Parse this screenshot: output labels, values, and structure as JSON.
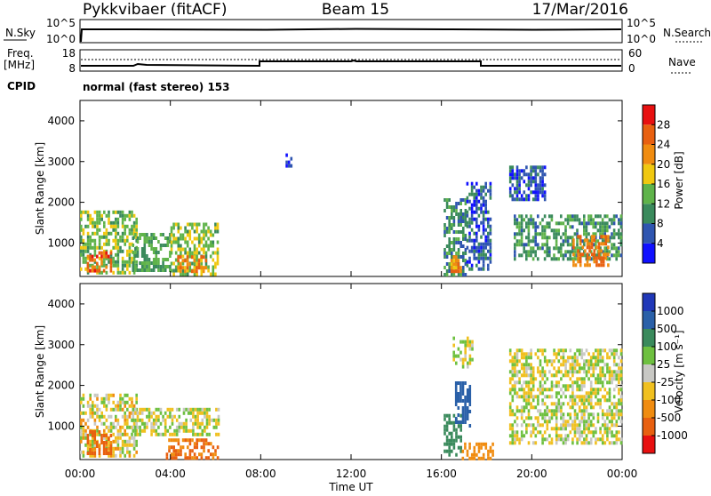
{
  "header": {
    "radar": "Pykkvibaer (fitACF)",
    "beam": "Beam 15",
    "date": "17/Mar/2016"
  },
  "sky_panel": {
    "left_label": "N.Sky",
    "right_label": "N.Search",
    "left_ticks": [
      "10^5",
      "10^0"
    ],
    "right_ticks": [
      "10^5",
      "10^0"
    ]
  },
  "freq_panel": {
    "left_label_1": "Freq.",
    "left_label_2": "[MHz]",
    "right_label": "Nave",
    "left_ticks": [
      "18",
      "8"
    ],
    "right_ticks": [
      "60",
      "0"
    ]
  },
  "cpid": {
    "label": "CPID",
    "text": "normal (fast stereo) 153"
  },
  "x_axis": {
    "tick_labels": [
      "00:00",
      "04:00",
      "08:00",
      "12:00",
      "16:00",
      "20:00",
      "00:00"
    ],
    "label": "Time UT"
  },
  "y_axis": {
    "label": "Slant Range [km]",
    "tick_labels": [
      "1000",
      "2000",
      "3000",
      "4000"
    ]
  },
  "power_colorbar": {
    "label": "Power [dB]",
    "tick_labels": [
      "4",
      "8",
      "12",
      "16",
      "20",
      "24",
      "28"
    ],
    "colors": [
      "#1010ff",
      "#2f55b0",
      "#3a8a5c",
      "#5fb34a",
      "#f0c810",
      "#f08c10",
      "#e86010",
      "#e81010"
    ]
  },
  "velocity_colorbar": {
    "label": "Velocity [m s⁻¹]",
    "tick_labels": [
      "1000",
      "500",
      "100",
      "25",
      "-25",
      "-100",
      "-500",
      "-1000"
    ],
    "colors": [
      "#2038b8",
      "#2a60a8",
      "#3a8a5c",
      "#6ec040",
      "#c8c8c4",
      "#f0c020",
      "#f08c10",
      "#e86010",
      "#e81010"
    ]
  },
  "chart_data": [
    {
      "type": "heatmap",
      "title": "Power [dB]",
      "xlabel": "Time UT",
      "ylabel": "Slant Range [km]",
      "xlim": [
        "00:00",
        "24:00"
      ],
      "ylim": [
        180,
        4500
      ],
      "colorbar_range": [
        0,
        30
      ],
      "regions": [
        {
          "t0": 0.0,
          "t1": 2.5,
          "r0": 300,
          "r1": 1800,
          "value": 14
        },
        {
          "t0": 0.3,
          "t1": 1.4,
          "r0": 350,
          "r1": 800,
          "value": 26
        },
        {
          "t0": 2.3,
          "t1": 4.0,
          "r0": 300,
          "r1": 1250,
          "value": 12
        },
        {
          "t0": 4.0,
          "t1": 6.1,
          "r0": 250,
          "r1": 1500,
          "value": 15
        },
        {
          "t0": 4.3,
          "t1": 5.6,
          "r0": 300,
          "r1": 700,
          "value": 23
        },
        {
          "t0": 9.1,
          "t1": 9.4,
          "r0": 2900,
          "r1": 3200,
          "value": 4
        },
        {
          "t0": 16.1,
          "t1": 17.1,
          "r0": 250,
          "r1": 2100,
          "value": 10
        },
        {
          "t0": 16.4,
          "t1": 16.9,
          "r0": 350,
          "r1": 700,
          "value": 22
        },
        {
          "t0": 17.1,
          "t1": 18.2,
          "r0": 400,
          "r1": 2500,
          "value": 6
        },
        {
          "t0": 19.0,
          "t1": 20.6,
          "r0": 2100,
          "r1": 2900,
          "value": 6
        },
        {
          "t0": 19.2,
          "t1": 24.0,
          "r0": 600,
          "r1": 1700,
          "value": 11
        },
        {
          "t0": 21.8,
          "t1": 23.4,
          "r0": 500,
          "r1": 1200,
          "value": 24
        }
      ]
    },
    {
      "type": "heatmap",
      "title": "Velocity [m s⁻¹]",
      "xlabel": "Time UT",
      "ylabel": "Slant Range [km]",
      "xlim": [
        "00:00",
        "24:00"
      ],
      "ylim": [
        180,
        4500
      ],
      "colorbar_range": [
        -1000,
        1000
      ],
      "regions": [
        {
          "t0": 0.0,
          "t1": 2.5,
          "r0": 300,
          "r1": 1800,
          "value": -20
        },
        {
          "t0": 0.3,
          "t1": 1.4,
          "r0": 350,
          "r1": 900,
          "value": -350
        },
        {
          "t0": 2.3,
          "t1": 6.1,
          "r0": 800,
          "r1": 1450,
          "value": 0
        },
        {
          "t0": 3.8,
          "t1": 6.1,
          "r0": 250,
          "r1": 700,
          "value": -300
        },
        {
          "t0": 16.1,
          "t1": 16.9,
          "r0": 300,
          "r1": 1300,
          "value": 120
        },
        {
          "t0": 16.6,
          "t1": 17.3,
          "r0": 1000,
          "r1": 2100,
          "value": 600
        },
        {
          "t0": 16.9,
          "t1": 18.3,
          "r0": 250,
          "r1": 600,
          "value": -200
        },
        {
          "t0": 16.5,
          "t1": 17.4,
          "r0": 2500,
          "r1": 3200,
          "value": 0
        },
        {
          "t0": 19.0,
          "t1": 24.0,
          "r0": 600,
          "r1": 2900,
          "value": 0
        }
      ]
    }
  ]
}
